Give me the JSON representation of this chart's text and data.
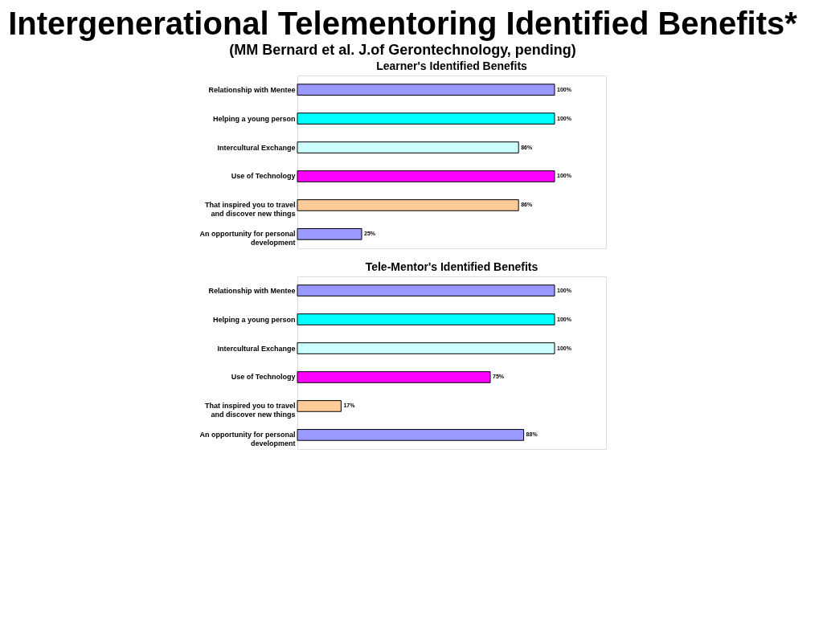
{
  "chart_data": [
    {
      "type": "bar",
      "orientation": "horizontal",
      "title": "Learner's Identified Benefits",
      "annotations": [
        "Intergenerational Telementoring Identified Benefits*",
        "(MM Bernard et al. J.of Gerontechnology, pending)"
      ],
      "categories": [
        "Relationship with Mentee",
        "Helping a young person",
        "Intercultural Exchange",
        "Use of Technology",
        "That inspired you to travel\nand discover new things",
        "An opportunity for personal\ndevelopment"
      ],
      "values": [
        100,
        100,
        86,
        100,
        86,
        25
      ],
      "colors": [
        "#9999ff",
        "#00ffff",
        "#ccffff",
        "#ff00ff",
        "#ffcc99",
        "#9999ff"
      ],
      "value_labels": [
        "100%",
        "100%",
        "86%",
        "100%",
        "86%",
        "25%"
      ],
      "xlim": [
        0,
        120
      ],
      "tick_labels": "y",
      "grid": false
    },
    {
      "type": "bar",
      "orientation": "horizontal",
      "title": "Tele-Mentor's Identified Benefits",
      "categories": [
        "Relationship with Mentee",
        "Helping a young person",
        "Intercultural Exchange",
        "Use of Technology",
        "That inspired you to travel\nand discover new things",
        "An opportunity for personal\ndevelopment"
      ],
      "values": [
        100,
        100,
        100,
        75,
        17,
        88
      ],
      "colors": [
        "#9999ff",
        "#00ffff",
        "#ccffff",
        "#ff00ff",
        "#ffcc99",
        "#9999ff"
      ],
      "value_labels": [
        "100%",
        "100%",
        "100%",
        "75%",
        "17%",
        "88%"
      ],
      "xlim": [
        0,
        120
      ],
      "tick_labels": "y",
      "grid": false
    }
  ]
}
